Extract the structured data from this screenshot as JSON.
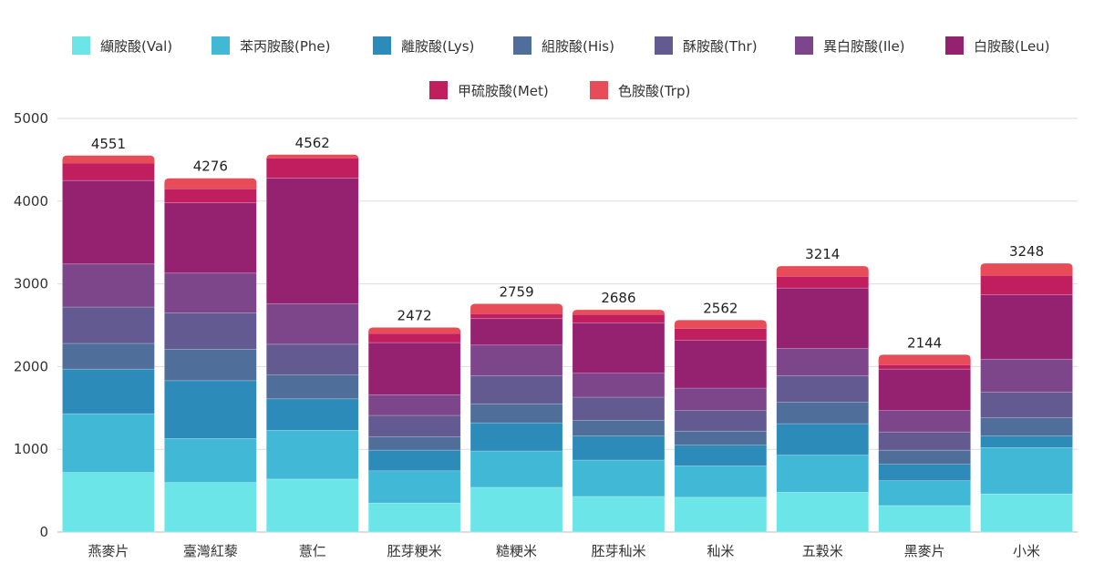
{
  "chart_data": {
    "type": "bar",
    "stacked": true,
    "categories": [
      "燕麥片",
      "臺灣紅藜",
      "薏仁",
      "胚芽粳米",
      "糙粳米",
      "胚芽秈米",
      "秈米",
      "五穀米",
      "黑麥片",
      "小米"
    ],
    "totals": [
      4551,
      4276,
      4562,
      2472,
      2759,
      2686,
      2562,
      3214,
      2144,
      3248
    ],
    "ylim": [
      0,
      5000
    ],
    "yticks": [
      0,
      1000,
      2000,
      3000,
      4000,
      5000
    ],
    "grid": true,
    "legend_position": "top",
    "series": [
      {
        "name": "纈胺酸(Val)",
        "color": "#6ce5e8",
        "values": [
          720,
          600,
          640,
          350,
          540,
          430,
          420,
          480,
          320,
          460
        ]
      },
      {
        "name": "苯丙胺酸(Phe)",
        "color": "#41b8d5",
        "values": [
          710,
          530,
          590,
          390,
          440,
          440,
          380,
          450,
          300,
          560
        ]
      },
      {
        "name": "離胺酸(Lys)",
        "color": "#2d8bba",
        "values": [
          540,
          700,
          380,
          250,
          340,
          290,
          250,
          380,
          200,
          140
        ]
      },
      {
        "name": "組胺酸(His)",
        "color": "#506e9a",
        "values": [
          310,
          380,
          290,
          160,
          230,
          190,
          170,
          260,
          170,
          220
        ]
      },
      {
        "name": "酥胺酸(Thr)",
        "color": "#635a92",
        "values": [
          440,
          440,
          370,
          260,
          340,
          280,
          250,
          320,
          220,
          310
        ]
      },
      {
        "name": "異白胺酸(Ile)",
        "color": "#7e468a",
        "values": [
          520,
          480,
          490,
          250,
          370,
          290,
          270,
          330,
          260,
          400
        ]
      },
      {
        "name": "白胺酸(Leu)",
        "color": "#942270",
        "values": [
          1010,
          850,
          1520,
          630,
          320,
          610,
          580,
          730,
          500,
          780
        ]
      },
      {
        "name": "甲硫胺酸(Met)",
        "color": "#c11e5f",
        "values": [
          210,
          170,
          240,
          110,
          60,
          100,
          140,
          140,
          50,
          230
        ]
      },
      {
        "name": "色胺酸(Trp)",
        "color": "#e84c58",
        "values": [
          91,
          126,
          42,
          72,
          119,
          56,
          102,
          124,
          124,
          148
        ]
      }
    ]
  }
}
